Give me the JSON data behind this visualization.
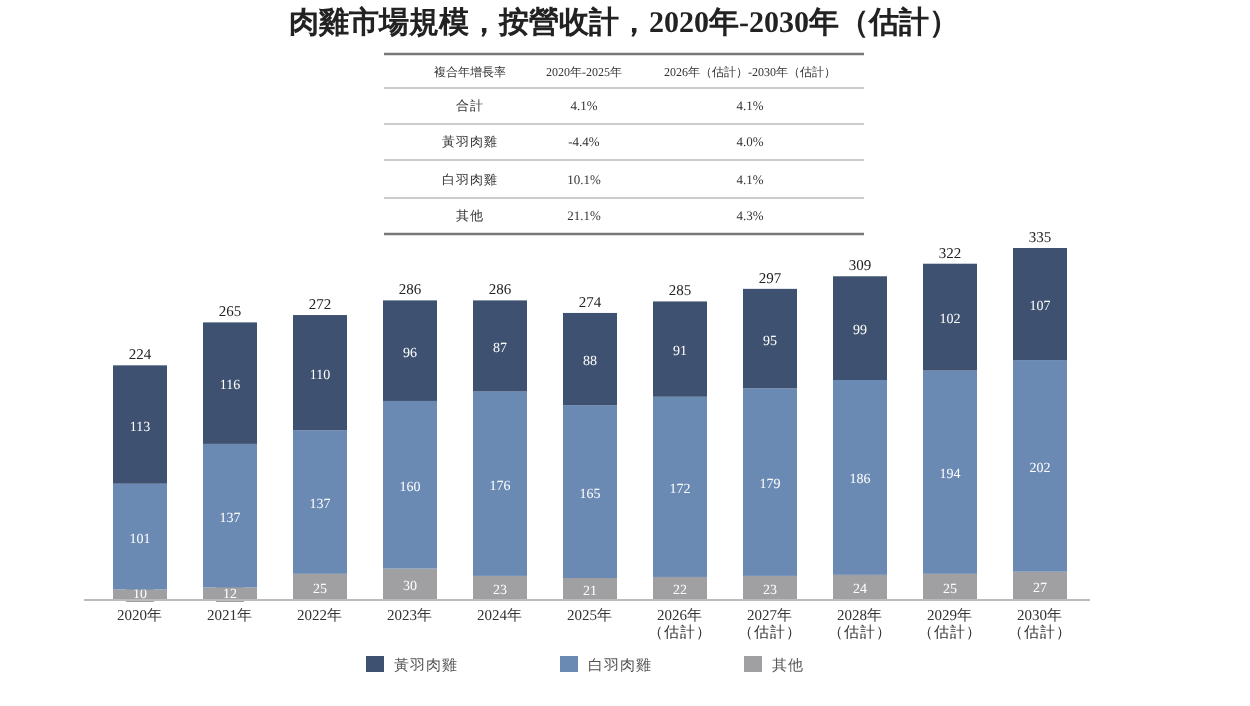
{
  "chart_data": {
    "type": "bar",
    "title": "肉雞市場規模，按營收計，2020年-2030年（估計）",
    "categories": [
      "2020年",
      "2021年",
      "2022年",
      "2023年",
      "2024年",
      "2025年",
      "2026年（估計）",
      "2027年（估計）",
      "2028年（估計）",
      "2029年（估計）",
      "2030年（估計）"
    ],
    "stacked": true,
    "data_labels": true,
    "legend": "bottom",
    "series": [
      {
        "name": "其他",
        "color": "#a0a0a2",
        "values": [
          10,
          12,
          25,
          30,
          23,
          21,
          22,
          23,
          24,
          25,
          27
        ]
      },
      {
        "name": "白羽肉雞",
        "color": "#6a8ab4",
        "values": [
          101,
          137,
          137,
          160,
          176,
          165,
          172,
          179,
          186,
          194,
          202
        ]
      },
      {
        "name": "黃羽肉雞",
        "color": "#3e5170",
        "values": [
          113,
          116,
          110,
          96,
          87,
          88,
          91,
          95,
          99,
          102,
          107
        ]
      }
    ],
    "totals": [
      "224",
      "265",
      "272",
      "286",
      "286",
      "274",
      "285",
      "297",
      "309",
      "322",
      "335"
    ],
    "annotations": [
      "複合年增長率",
      "2020年-2025年",
      "2026年（估計）-2030年（估計）",
      "合計",
      "4.1%",
      "4.1%",
      "黃羽肉雞",
      "-4.4%",
      "4.0%",
      "白羽肉雞",
      "10.1%",
      "4.1%",
      "其他",
      "21.1%",
      "4.3%"
    ]
  }
}
